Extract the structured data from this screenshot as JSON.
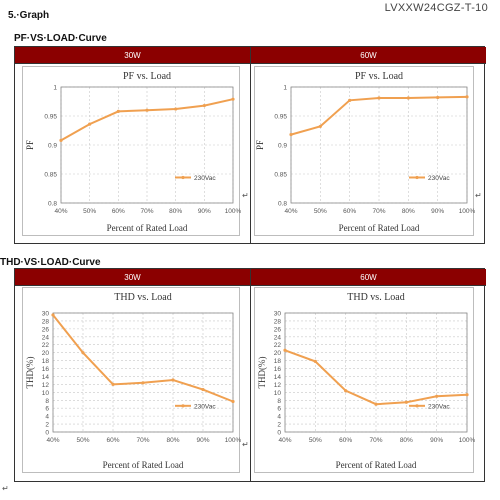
{
  "header": {
    "doc_id": "LVXXW24CGZ-T-10",
    "section_title": "5.·Graph",
    "pf_heading": "PF·VS·LOAD·Curve",
    "thd_heading": "THD·VS·LOAD·Curve"
  },
  "chart_data": [
    {
      "type": "line",
      "panel": "30W",
      "title": "PF vs. Load",
      "xlabel": "Percent of Rated Load",
      "ylabel": "PF",
      "categories": [
        "40%",
        "50%",
        "60%",
        "70%",
        "80%",
        "90%",
        "100%"
      ],
      "ylim": [
        0.8,
        1.0
      ],
      "yticks": [
        "0.8",
        "0.85",
        "0.9",
        "0.95",
        "1"
      ],
      "series": [
        {
          "name": "230Vac",
          "values": [
            0.908,
            0.936,
            0.958,
            0.96,
            0.962,
            0.968,
            0.979
          ]
        }
      ],
      "legend_position": "bottom-right",
      "grid": true,
      "colors": {
        "line": "#f0a050"
      }
    },
    {
      "type": "line",
      "panel": "60W",
      "title": "PF vs. Load",
      "xlabel": "Percent of Rated Load",
      "ylabel": "PF",
      "categories": [
        "40%",
        "50%",
        "60%",
        "70%",
        "80%",
        "90%",
        "100%"
      ],
      "ylim": [
        0.8,
        1.0
      ],
      "yticks": [
        "0.8",
        "0.85",
        "0.9",
        "0.95",
        "1"
      ],
      "series": [
        {
          "name": "230Vac",
          "values": [
            0.918,
            0.932,
            0.977,
            0.981,
            0.981,
            0.982,
            0.983
          ]
        }
      ],
      "legend_position": "bottom-right",
      "grid": true,
      "colors": {
        "line": "#f0a050"
      }
    },
    {
      "type": "line",
      "panel": "30W",
      "title": "THD vs. Load",
      "xlabel": "Percent of Rated Load",
      "ylabel": "THD(%)",
      "categories": [
        "40%",
        "50%",
        "60%",
        "70%",
        "80%",
        "90%",
        "100%"
      ],
      "ylim": [
        0,
        30
      ],
      "yticks": [
        "0",
        "2",
        "4",
        "6",
        "8",
        "10",
        "12",
        "14",
        "16",
        "18",
        "20",
        "22",
        "24",
        "26",
        "28",
        "30"
      ],
      "series": [
        {
          "name": "230Vac",
          "values": [
            29.5,
            20.0,
            12.0,
            12.4,
            13.1,
            10.7,
            7.7
          ]
        }
      ],
      "legend_position": "bottom-right",
      "grid": true,
      "colors": {
        "line": "#f0a050"
      }
    },
    {
      "type": "line",
      "panel": "60W",
      "title": "THD vs. Load",
      "xlabel": "Percent of Rated Load",
      "ylabel": "THD(%)",
      "categories": [
        "40%",
        "50%",
        "60%",
        "70%",
        "80%",
        "90%",
        "100%"
      ],
      "ylim": [
        0,
        30
      ],
      "yticks": [
        "0",
        "2",
        "4",
        "6",
        "8",
        "10",
        "12",
        "14",
        "16",
        "18",
        "20",
        "22",
        "24",
        "26",
        "28",
        "30"
      ],
      "series": [
        {
          "name": "230Vac",
          "values": [
            20.6,
            17.8,
            10.4,
            7.0,
            7.5,
            9.0,
            9.4
          ]
        }
      ],
      "legend_position": "bottom-right",
      "grid": true,
      "colors": {
        "line": "#f0a050"
      }
    }
  ],
  "colors": {
    "panel_header": "#8b0000",
    "panel_header_text": "#ffffff"
  }
}
